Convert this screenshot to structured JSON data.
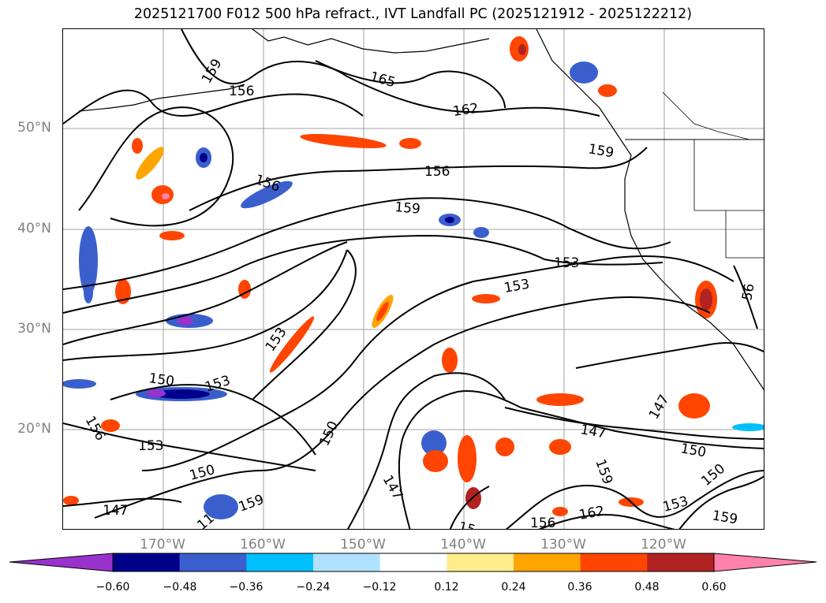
{
  "title": "2025121700 F012 500 hPa refract., IVT Landfall PC (2025121912 - 2025122212)",
  "lat_labels": [
    "50°N",
    "40°N",
    "30°N",
    "20°N"
  ],
  "lon_labels": [
    "170°W",
    "160°W",
    "150°W",
    "140°W",
    "130°W",
    "120°W"
  ],
  "colorbar": {
    "ticks": [
      "−0.60",
      "−0.48",
      "−0.36",
      "−0.24",
      "−0.12",
      "0.12",
      "0.24",
      "0.36",
      "0.48",
      "0.60"
    ],
    "colors": [
      "#9932cc",
      "#00008b",
      "#3a5fcd",
      "#00bfff",
      "#b0e2ff",
      "#ffffff",
      "#ffec8b",
      "#ffa500",
      "#ff4500",
      "#b22222",
      "#ff82ab"
    ]
  },
  "contour_labels": [
    "159",
    "156",
    "165",
    "162",
    "159",
    "156",
    "156",
    "159",
    "153",
    "153",
    "56",
    "150",
    "153",
    "156",
    "153",
    "150",
    "147",
    "159",
    "150",
    "153",
    "147",
    "147",
    "159",
    "150",
    "162",
    "153",
    "150",
    "156",
    "159",
    "147",
    "15",
    "11"
  ]
}
